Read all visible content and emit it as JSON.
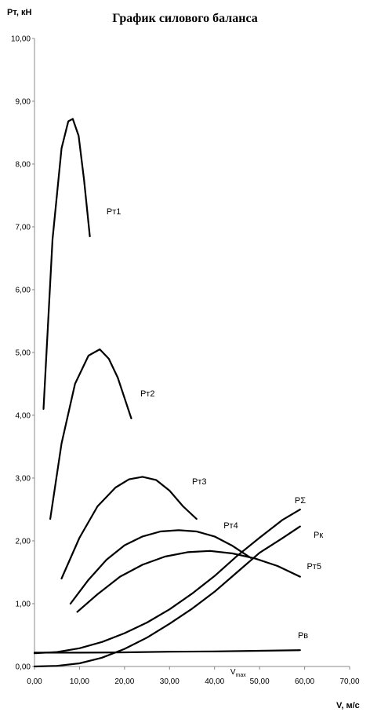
{
  "chart_data": {
    "type": "line",
    "title": "График силового баланса",
    "ylabel": "Pт, кН",
    "xlabel": "V, м/с",
    "xlim": [
      0,
      70
    ],
    "ylim": [
      0,
      10
    ],
    "grid": false,
    "x_ticks": [
      "0,00",
      "10,00",
      "20,00",
      "30,00",
      "40,00",
      "50,00",
      "60,00",
      "70,00"
    ],
    "y_ticks": [
      "0,00",
      "1,00",
      "2,00",
      "3,00",
      "4,00",
      "5,00",
      "6,00",
      "7,00",
      "8,00",
      "9,00",
      "10,00"
    ],
    "annotation": {
      "text": "V",
      "subscript": "max",
      "x": 43.5
    },
    "series": [
      {
        "name": "Pт1",
        "x": [
          2.0,
          4.0,
          6.0,
          7.5,
          8.5,
          9.8,
          11.0,
          12.3
        ],
        "y": [
          4.1,
          6.8,
          8.25,
          8.68,
          8.72,
          8.45,
          7.75,
          6.85
        ]
      },
      {
        "name": "Pт2",
        "x": [
          3.5,
          6.0,
          9.0,
          12.0,
          14.5,
          16.5,
          18.5,
          21.5
        ],
        "y": [
          2.35,
          3.55,
          4.5,
          4.95,
          5.05,
          4.9,
          4.6,
          3.95
        ]
      },
      {
        "name": "Pт3",
        "x": [
          6.0,
          10.0,
          14.0,
          18.0,
          21.0,
          24.0,
          27.0,
          30.0,
          33.0,
          36.0
        ],
        "y": [
          1.4,
          2.05,
          2.55,
          2.85,
          2.98,
          3.02,
          2.97,
          2.8,
          2.55,
          2.35
        ]
      },
      {
        "name": "Pт4",
        "x": [
          8.0,
          12.0,
          16.0,
          20.0,
          24.0,
          28.0,
          32.0,
          36.0,
          40.0,
          44.0,
          48.0
        ],
        "y": [
          1.0,
          1.38,
          1.7,
          1.93,
          2.07,
          2.15,
          2.17,
          2.15,
          2.07,
          1.92,
          1.73
        ]
      },
      {
        "name": "Pт5",
        "x": [
          9.5,
          14.0,
          19.0,
          24.0,
          29.0,
          34.0,
          39.0,
          44.0,
          49.0,
          54.0,
          59.0
        ],
        "y": [
          0.87,
          1.15,
          1.43,
          1.62,
          1.75,
          1.82,
          1.84,
          1.8,
          1.72,
          1.6,
          1.43
        ]
      },
      {
        "name": "PΣ",
        "x": [
          0.0,
          5.0,
          10.0,
          15.0,
          20.0,
          25.0,
          30.0,
          35.0,
          40.0,
          45.0,
          50.0,
          55.0,
          59.0
        ],
        "y": [
          0.21,
          0.23,
          0.29,
          0.39,
          0.53,
          0.7,
          0.91,
          1.16,
          1.44,
          1.76,
          2.05,
          2.33,
          2.5
        ]
      },
      {
        "name": "Pк",
        "x": [
          0.0,
          5.0,
          10.0,
          15.0,
          20.0,
          25.0,
          30.0,
          35.0,
          40.0,
          45.0,
          50.0,
          55.0,
          59.0
        ],
        "y": [
          0.0,
          0.01,
          0.05,
          0.14,
          0.28,
          0.46,
          0.68,
          0.92,
          1.19,
          1.5,
          1.81,
          2.04,
          2.23
        ]
      },
      {
        "name": "Pв",
        "x": [
          0.0,
          10.0,
          20.0,
          30.0,
          40.0,
          50.0,
          59.0
        ],
        "y": [
          0.22,
          0.22,
          0.225,
          0.235,
          0.24,
          0.25,
          0.26
        ]
      }
    ],
    "series_labels": [
      {
        "text": "Pт1",
        "x": 16.0,
        "y": 7.2
      },
      {
        "text": "Pт2",
        "x": 23.5,
        "y": 4.3
      },
      {
        "text": "Pт3",
        "x": 35.0,
        "y": 2.9
      },
      {
        "text": "Pт4",
        "x": 42.0,
        "y": 2.2
      },
      {
        "text": "PΣ",
        "x": 57.8,
        "y": 2.6
      },
      {
        "text": "Pк",
        "x": 62.0,
        "y": 2.05
      },
      {
        "text": "Pт5",
        "x": 60.5,
        "y": 1.55
      },
      {
        "text": "Pв",
        "x": 58.5,
        "y": 0.45
      }
    ]
  }
}
